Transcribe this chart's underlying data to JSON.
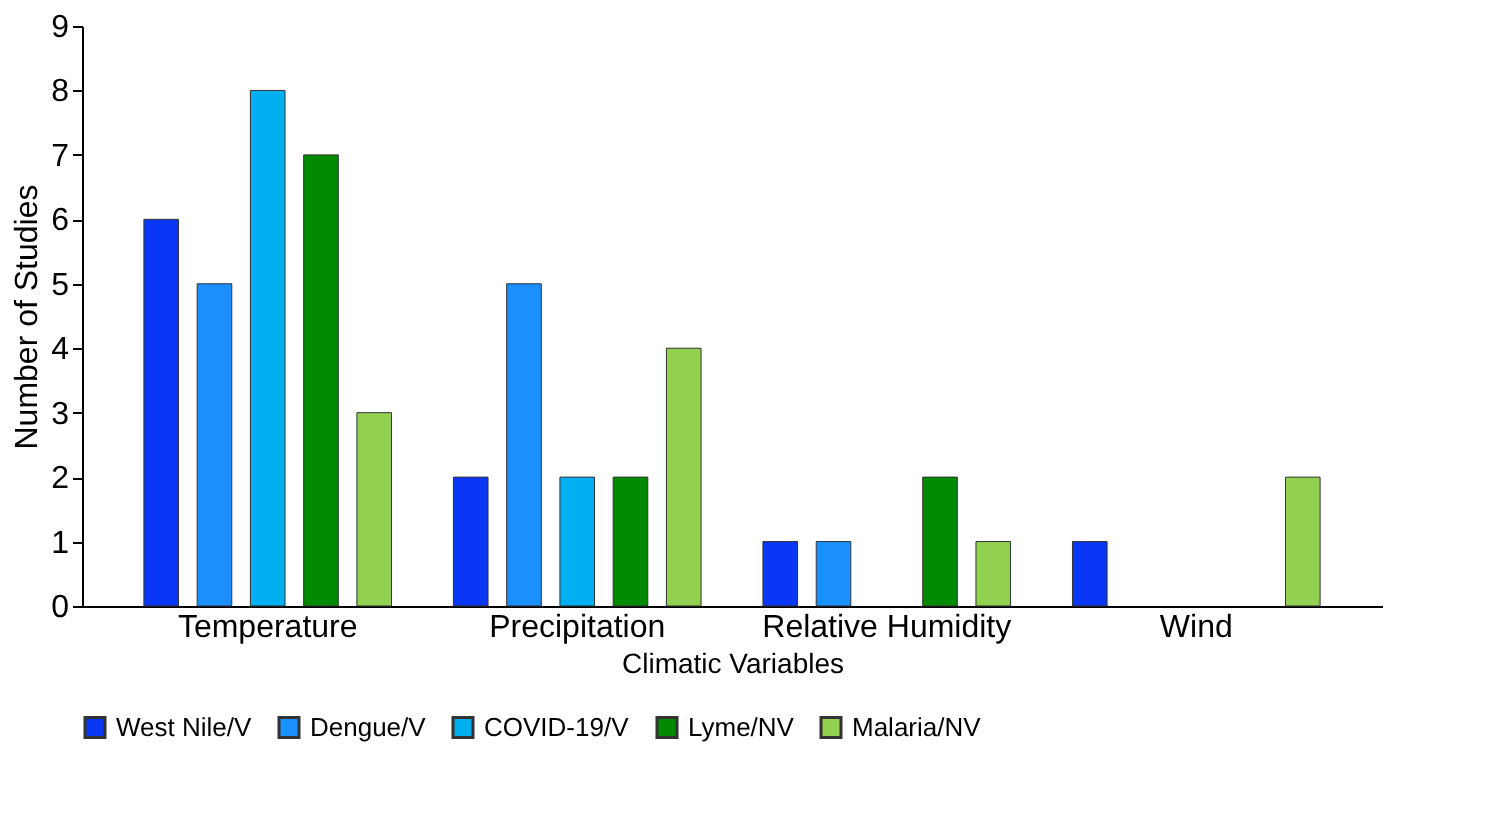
{
  "chart_data": {
    "type": "bar",
    "categories": [
      "Temperature",
      "Precipitation",
      "Relative Humidity",
      "Wind"
    ],
    "series": [
      {
        "name": "West Nile/V",
        "color": "#0a37f5",
        "values": [
          6,
          2,
          1,
          1
        ]
      },
      {
        "name": "Dengue/V",
        "color": "#1a90ff",
        "values": [
          5,
          5,
          1,
          null
        ]
      },
      {
        "name": "COVID-19/V",
        "color": "#00b0f0",
        "values": [
          8,
          2,
          null,
          null
        ]
      },
      {
        "name": "Lyme/NV",
        "color": "#008a00",
        "values": [
          7,
          2,
          2,
          null
        ]
      },
      {
        "name": "Malaria/NV",
        "color": "#92d050",
        "values": [
          3,
          4,
          1,
          2
        ]
      }
    ],
    "xlabel": "Climatic Variables",
    "ylabel": "Number of Studies",
    "ylim": [
      0,
      9
    ],
    "yticks": [
      0,
      1,
      2,
      3,
      4,
      5,
      6,
      7,
      8,
      9
    ],
    "grid": false,
    "legend": "bottom"
  }
}
